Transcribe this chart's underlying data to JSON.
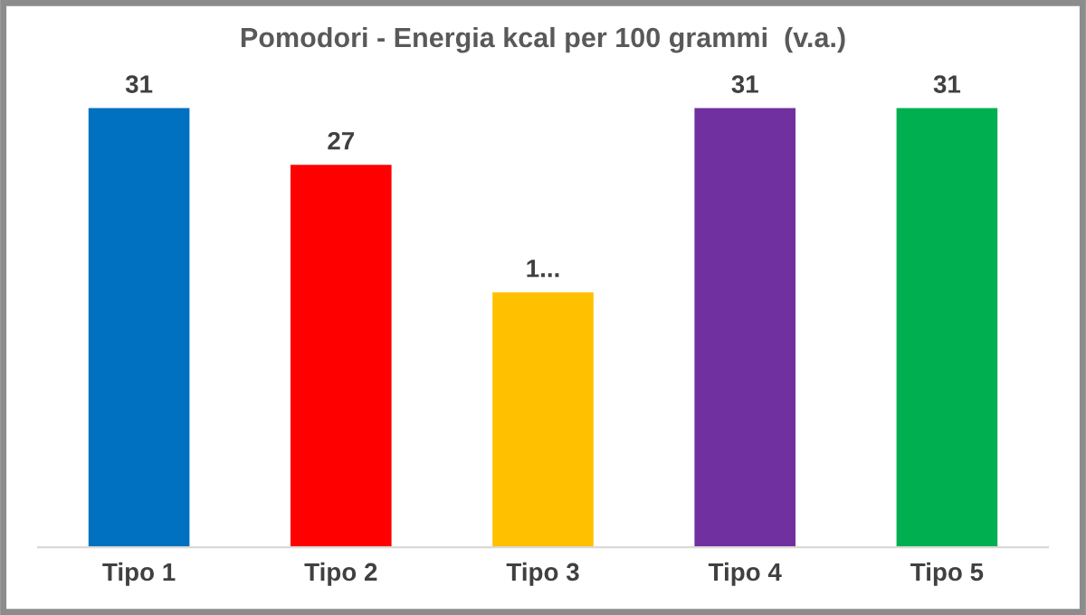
{
  "chart_data": {
    "type": "bar",
    "title": "Pomodori - Energia kcal per 100 grammi  (v.a.)",
    "categories": [
      "Tipo 1",
      "Tipo 2",
      "Tipo 3",
      "Tipo 4",
      "Tipo 5"
    ],
    "values": [
      31,
      27,
      18,
      31,
      31
    ],
    "colors": [
      "#0070c0",
      "#ff0000",
      "#ffc000",
      "#7030a0",
      "#00b050"
    ],
    "value_labels": [
      "31",
      "27",
      "1...",
      "31",
      "31"
    ],
    "grid": false,
    "legend": false
  }
}
